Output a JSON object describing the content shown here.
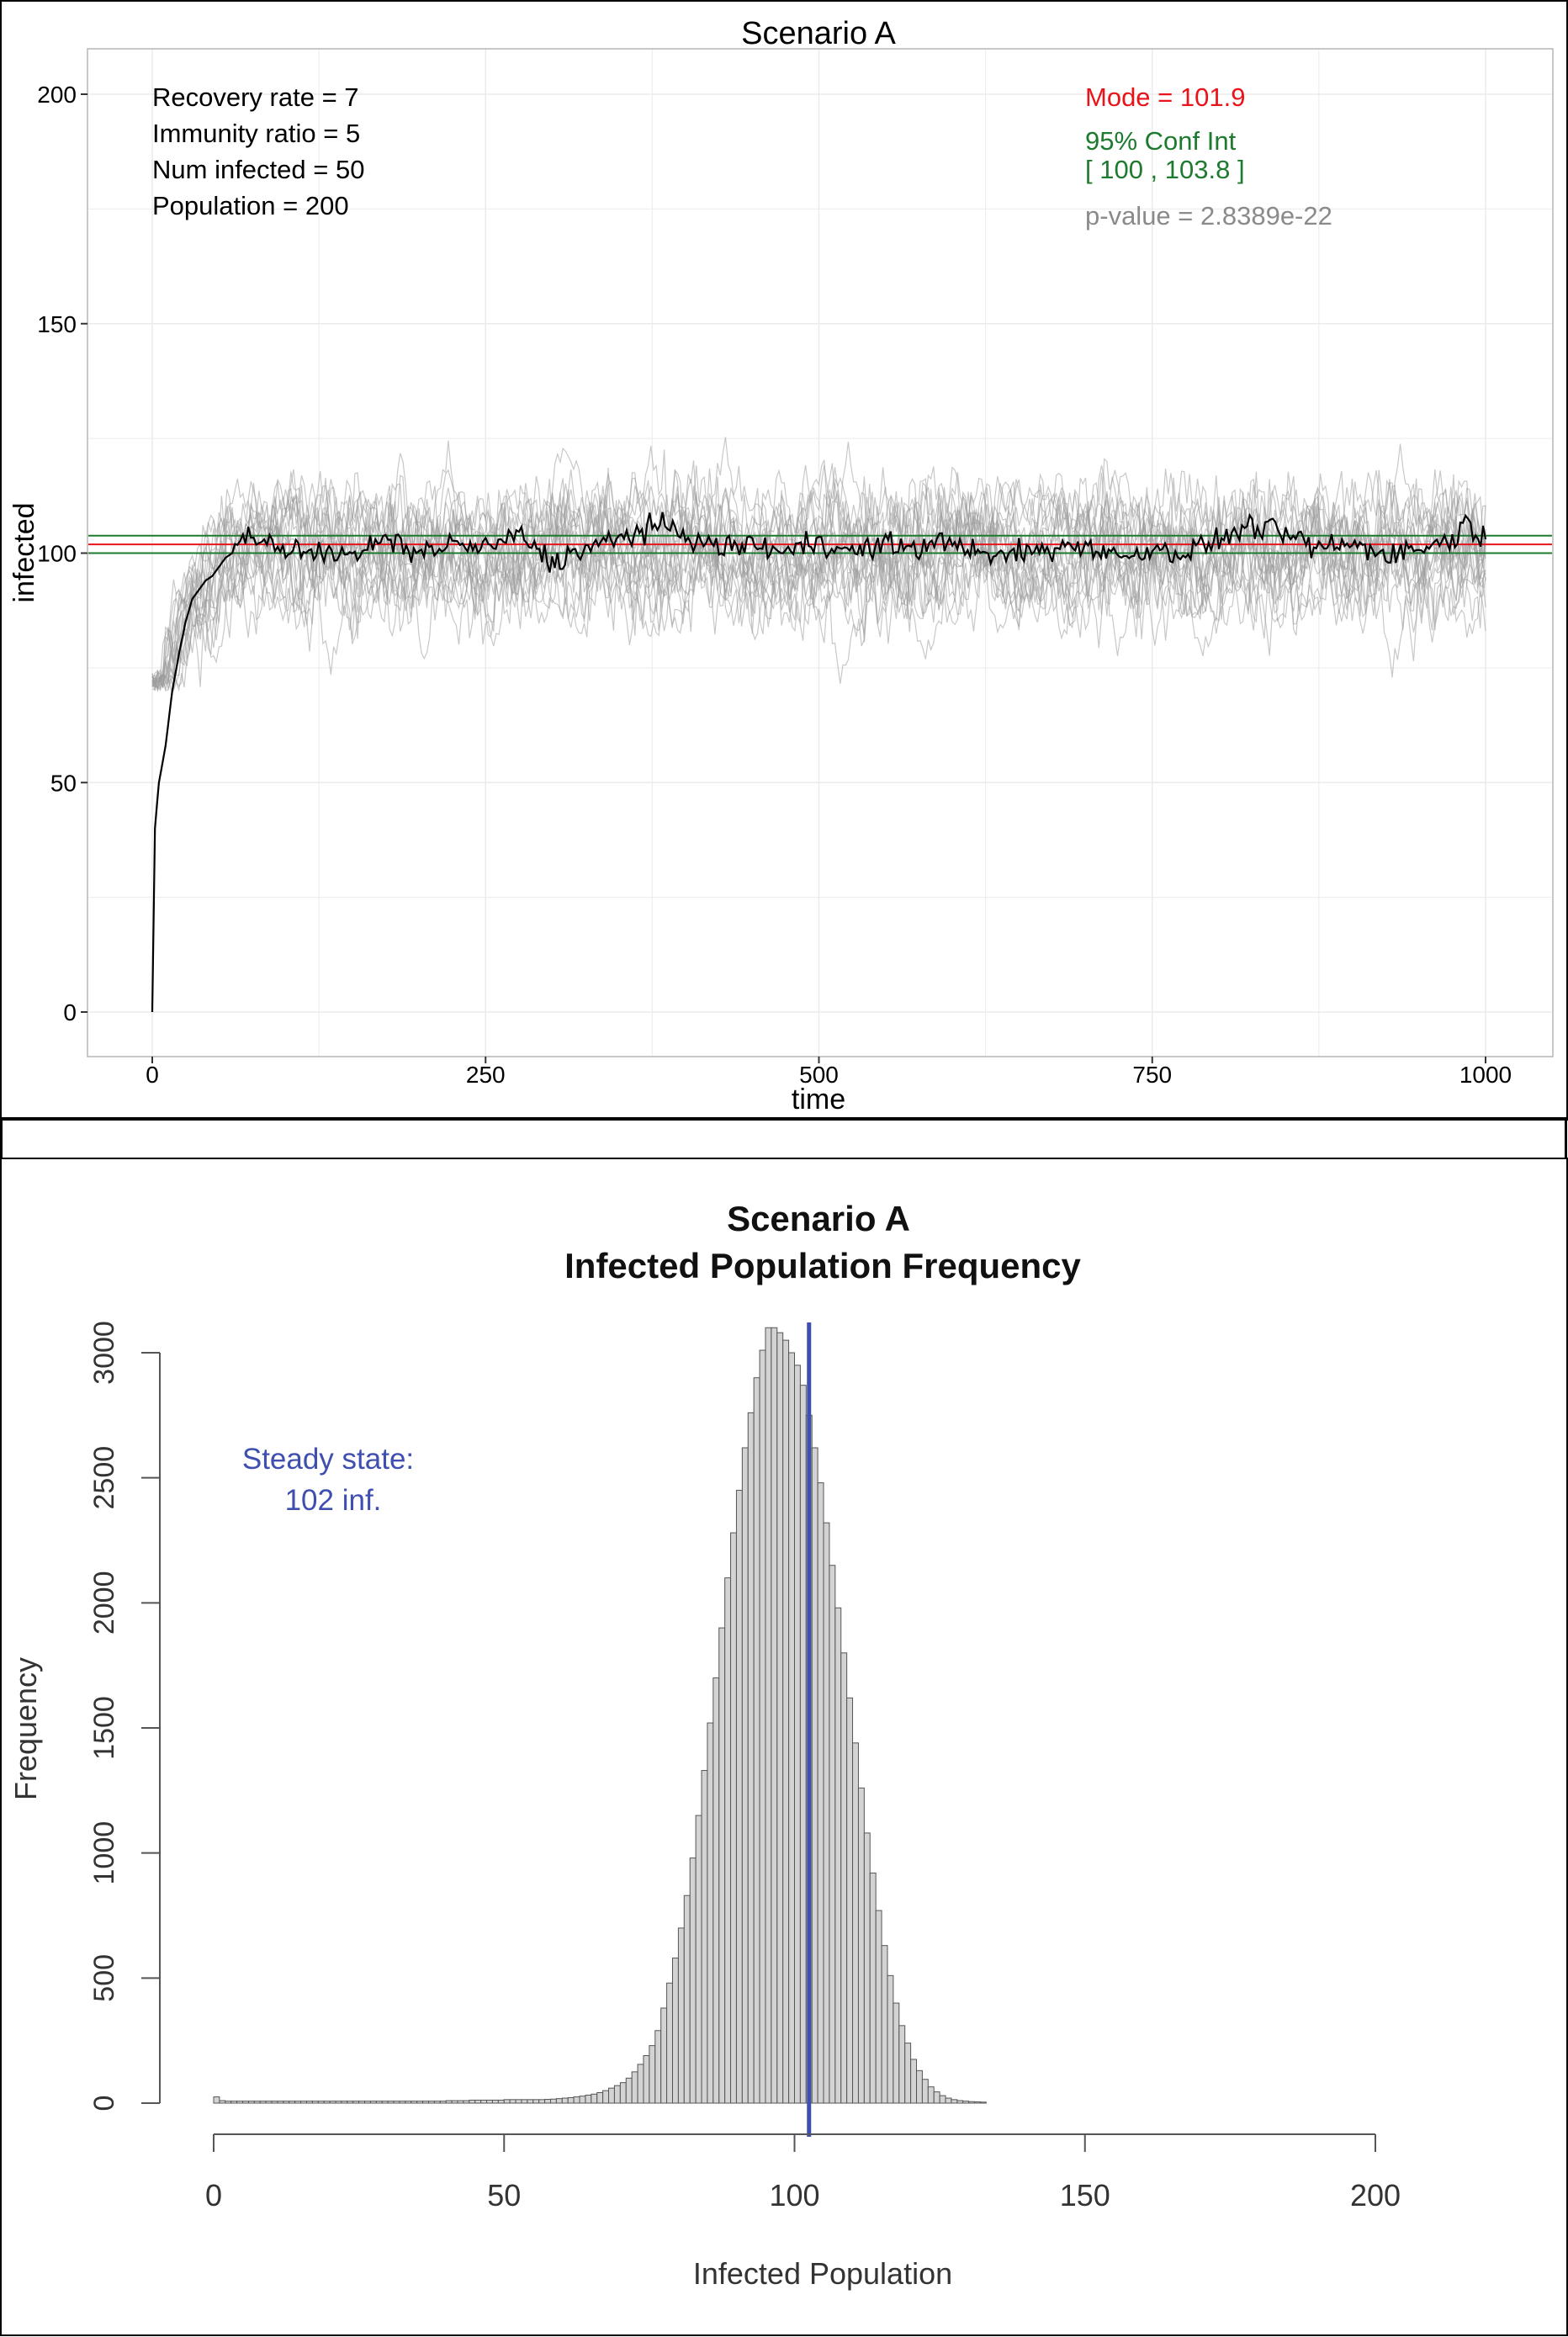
{
  "top_panel": {
    "title": "Scenario A",
    "params": [
      "Recovery rate = 7",
      "Immunity ratio = 5",
      "Num infected = 50",
      "Population = 200"
    ],
    "mode_text": "Mode = 101.9",
    "ci_title": "95% Conf Int",
    "ci_range": "[ 100 , 103.8 ]",
    "pvalue_text": "p-value = 2.8389e-22",
    "colors": {
      "mode": "#e8141a",
      "ci": "#1e7a2e",
      "pvalue": "#8a8a8a",
      "mean_line": "#000000",
      "runs": "#9a9a9a",
      "grid": "#ebebeb"
    }
  },
  "bottom_panel": {
    "title_line1": "Scenario A",
    "title_line2": "Infected Population Frequency",
    "annotation_line1": "Steady state:",
    "annotation_line2": "102 inf.",
    "colors": {
      "steady_line": "#3f4fb0",
      "bar_fill": "#d3d3d3",
      "bar_stroke": "#555555"
    }
  },
  "chart_data": [
    {
      "type": "line",
      "title": "Scenario A",
      "xlabel": "time",
      "ylabel": "infected",
      "xlim": [
        -25,
        1050
      ],
      "ylim": [
        -10,
        210
      ],
      "x_ticks": [
        0,
        250,
        500,
        750,
        1000
      ],
      "y_ticks": [
        0,
        50,
        100,
        150,
        200
      ],
      "grid": true,
      "hlines": {
        "mode": 101.9,
        "ci_low": 100,
        "ci_high": 103.8
      },
      "mean_run": {
        "x": [
          0,
          2,
          5,
          10,
          15,
          20,
          25,
          30,
          35,
          40,
          45,
          50,
          55,
          60,
          70,
          80,
          90,
          100,
          125,
          150,
          175,
          200,
          225,
          250,
          275,
          300,
          325,
          350,
          375,
          400,
          425,
          450,
          475,
          500,
          525,
          550,
          575,
          600,
          625,
          650,
          675,
          700,
          725,
          750,
          775,
          800,
          825,
          850,
          875,
          900,
          925,
          950,
          975,
          985,
          1000
        ],
        "y": [
          0,
          40,
          50,
          58,
          70,
          78,
          85,
          90,
          92,
          94,
          95,
          97,
          99,
          100,
          104,
          102,
          103,
          100,
          101,
          99,
          103,
          100,
          102,
          101,
          104,
          98,
          101,
          103,
          106,
          104,
          101,
          102,
          100,
          103,
          100,
          102,
          101,
          103,
          99,
          100,
          101,
          102,
          99,
          101,
          100,
          103,
          106,
          104,
          101,
          102,
          100,
          101,
          103,
          107,
          103
        ]
      },
      "runs_count": 20,
      "runs_band": {
        "mean": 101,
        "spread": 14,
        "min": 70,
        "max": 135
      }
    },
    {
      "type": "bar",
      "subtype": "histogram",
      "title": "Scenario A\nInfected Population Frequency",
      "xlabel": "Infected Population",
      "ylabel": "Frequency",
      "xlim": [
        0,
        200
      ],
      "ylim": [
        0,
        3000
      ],
      "x_ticks": [
        0,
        50,
        100,
        150,
        200
      ],
      "y_ticks": [
        0,
        500,
        1000,
        1500,
        2000,
        2500,
        3000
      ],
      "bin_width": 1,
      "x_start": 0,
      "values": [
        25,
        10,
        8,
        8,
        8,
        8,
        8,
        8,
        8,
        8,
        8,
        8,
        8,
        8,
        8,
        8,
        8,
        8,
        8,
        8,
        8,
        8,
        8,
        8,
        8,
        8,
        8,
        8,
        8,
        8,
        8,
        8,
        8,
        8,
        8,
        8,
        8,
        8,
        8,
        8,
        10,
        10,
        10,
        10,
        12,
        12,
        12,
        12,
        12,
        12,
        14,
        14,
        14,
        14,
        14,
        14,
        14,
        15,
        16,
        18,
        20,
        22,
        25,
        28,
        32,
        36,
        42,
        50,
        60,
        70,
        82,
        100,
        125,
        155,
        190,
        230,
        290,
        380,
        480,
        580,
        700,
        830,
        980,
        1150,
        1330,
        1520,
        1700,
        1900,
        2100,
        2280,
        2450,
        2620,
        2760,
        2900,
        3010,
        3100,
        3100,
        3080,
        3050,
        3000,
        2950,
        2870,
        2750,
        2620,
        2480,
        2320,
        2150,
        1980,
        1800,
        1620,
        1440,
        1260,
        1080,
        920,
        770,
        630,
        510,
        400,
        310,
        240,
        175,
        130,
        95,
        65,
        45,
        30,
        20,
        14,
        10,
        8,
        6,
        5,
        4
      ]
    }
  ]
}
